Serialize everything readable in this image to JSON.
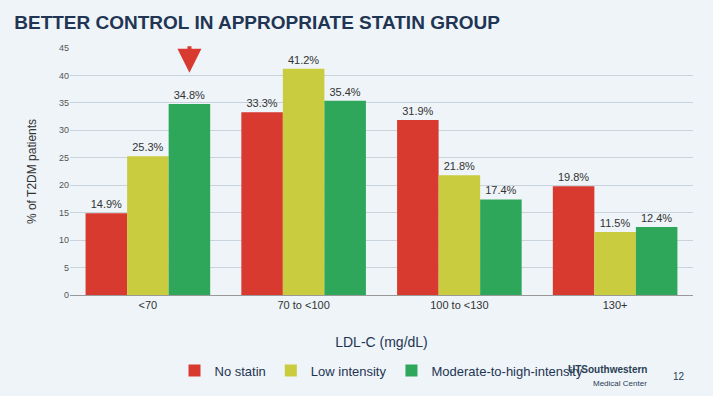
{
  "chart_data": {
    "type": "bar",
    "title": "BETTER CONTROL IN APPROPRIATE STATIN GROUP",
    "x_label": "LDL-C (mg/dL)",
    "y_label": "% of T2DM patients",
    "categories": [
      "<70",
      "70 to <100",
      "100 to <130",
      "130+"
    ],
    "series": [
      {
        "name": "No statin",
        "color": "#d93a2f",
        "values": [
          14.9,
          33.3,
          31.9,
          19.8
        ],
        "value_labels": [
          "14.9%",
          "33.3%",
          "31.9%",
          "19.8%"
        ]
      },
      {
        "name": "Low intensity",
        "color": "#c9cc3f",
        "values": [
          25.3,
          41.2,
          21.8,
          11.5
        ],
        "value_labels": [
          "25.3%",
          "41.2%",
          "21.8%",
          "11.5%"
        ]
      },
      {
        "name": "Moderate-to-high-intensity",
        "color": "#2fa75a",
        "values": [
          34.8,
          35.4,
          17.4,
          12.4
        ],
        "value_labels": [
          "34.8%",
          "35.4%",
          "17.4%",
          "12.4%"
        ]
      }
    ],
    "ylim": [
      0,
      45
    ],
    "yticks": [
      0,
      5,
      10,
      15,
      20,
      25,
      30,
      35,
      40,
      45
    ],
    "grid": true,
    "legend": "bottom",
    "data_labels": true,
    "annotations": [
      "UTSouthwestern",
      "Medical Center",
      "12"
    ]
  }
}
